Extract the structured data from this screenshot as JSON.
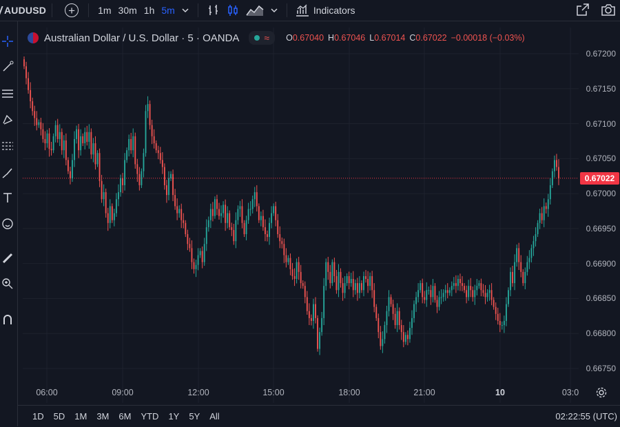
{
  "toolbar": {
    "symbol": "AUDUSD",
    "intervals": [
      "1m",
      "30m",
      "1h",
      "5m"
    ],
    "active_interval": "5m",
    "indicators_label": "Indicators"
  },
  "legend": {
    "title": "Australian Dollar / U.S. Dollar · 5 · OANDA",
    "o_key": "O",
    "o_val": "0.67040",
    "h_key": "H",
    "h_val": "0.67046",
    "l_key": "L",
    "l_val": "0.67014",
    "c_key": "C",
    "c_val": "0.67022",
    "change": "−0.00018 (−0.03%)"
  },
  "price_axis": {
    "labels": [
      "0.67200",
      "0.67150",
      "0.67100",
      "0.67050",
      "0.67000",
      "0.66950",
      "0.66900",
      "0.66850",
      "0.66800",
      "0.66750"
    ],
    "current_price": "0.67022"
  },
  "time_axis": {
    "labels": [
      "06:00",
      "09:00",
      "12:00",
      "15:00",
      "18:00",
      "21:00",
      "10",
      "03:0"
    ]
  },
  "bottom_bar": {
    "ranges": [
      "1D",
      "5D",
      "1M",
      "3M",
      "6M",
      "YTD",
      "1Y",
      "5Y",
      "All"
    ],
    "clock": "02:22:55 (UTC)"
  },
  "colors": {
    "background": "#131722",
    "up": "#26a69a",
    "down": "#ef5350",
    "accent": "#2962ff",
    "price_tag": "#f23645"
  },
  "chart_data": {
    "type": "candlestick",
    "ylim": [
      0.6675,
      0.6722
    ],
    "closes": [
      0.67182,
      0.67165,
      0.67148,
      0.67132,
      0.67118,
      0.67108,
      0.67098,
      0.67102,
      0.67092,
      0.67078,
      0.67072,
      0.67086,
      0.67064,
      0.67062,
      0.67082,
      0.67098,
      0.67078,
      0.67088,
      0.67062,
      0.67076,
      0.67048,
      0.67032,
      0.67022,
      0.67048,
      0.67078,
      0.67092,
      0.67062,
      0.67082,
      0.67072,
      0.67088,
      0.67074,
      0.67088,
      0.67056,
      0.67072,
      0.67042,
      0.67058,
      0.67018,
      0.66992,
      0.67002,
      0.66972,
      0.66958,
      0.66982,
      0.66962,
      0.66972,
      0.66992,
      0.67002,
      0.67022,
      0.67012,
      0.67048,
      0.67062,
      0.67078,
      0.67062,
      0.67082,
      0.67042,
      0.67028,
      0.67012,
      0.67032,
      0.67058,
      0.67118,
      0.67128,
      0.67098,
      0.67082,
      0.67072,
      0.67062,
      0.67058,
      0.67048,
      0.67038,
      0.67012,
      0.66998,
      0.67022,
      0.67028,
      0.66998,
      0.66982,
      0.66972,
      0.66978,
      0.66962,
      0.66958,
      0.66942,
      0.66928,
      0.66922,
      0.66902,
      0.66892,
      0.66898,
      0.66912,
      0.66918,
      0.66902,
      0.66928,
      0.66952,
      0.66962,
      0.66978,
      0.66968,
      0.66992,
      0.66978,
      0.66968,
      0.66972,
      0.66984,
      0.66958,
      0.66972,
      0.66952,
      0.66948,
      0.66932,
      0.66962,
      0.66978,
      0.66982,
      0.66958,
      0.66942,
      0.66962,
      0.66978,
      0.66978,
      0.66992,
      0.67002,
      0.66982,
      0.66962,
      0.66968,
      0.66952,
      0.66942,
      0.66938,
      0.66958,
      0.66972,
      0.66982,
      0.66962,
      0.66942,
      0.66932,
      0.66928,
      0.66912,
      0.66902,
      0.66908,
      0.66892,
      0.66882,
      0.66878,
      0.66902,
      0.66888,
      0.66872,
      0.66868,
      0.66852,
      0.66832,
      0.66822,
      0.66818,
      0.66842,
      0.66822,
      0.66778,
      0.66802,
      0.66822,
      0.66868,
      0.66902,
      0.66888,
      0.66872,
      0.66902,
      0.66882,
      0.66862,
      0.66888,
      0.66872,
      0.66858,
      0.66872,
      0.66882,
      0.66872,
      0.66878,
      0.66862,
      0.66872,
      0.66858,
      0.66872,
      0.66862,
      0.66882,
      0.66878,
      0.66868,
      0.66882,
      0.66862,
      0.66838,
      0.66822,
      0.66802,
      0.66782,
      0.66792,
      0.66812,
      0.66832,
      0.66852,
      0.66842,
      0.66828,
      0.66812,
      0.66832,
      0.66812,
      0.66802,
      0.66788,
      0.66798,
      0.66792,
      0.66808,
      0.66822,
      0.66842,
      0.66852,
      0.66862,
      0.66872,
      0.66852,
      0.66848,
      0.66862,
      0.66862,
      0.66852,
      0.66868,
      0.66848,
      0.66838,
      0.66852,
      0.66852,
      0.66858,
      0.66862,
      0.66858,
      0.66862,
      0.66868,
      0.66872,
      0.66868,
      0.66878,
      0.66872,
      0.66868,
      0.66862,
      0.66852,
      0.66868,
      0.66862,
      0.66852,
      0.66862,
      0.66868,
      0.66872,
      0.66862,
      0.66858,
      0.66852,
      0.66858,
      0.66862,
      0.66848,
      0.66838,
      0.66828,
      0.66818,
      0.66812,
      0.66812,
      0.66818,
      0.66842,
      0.66862,
      0.66888,
      0.66872,
      0.66902,
      0.66922,
      0.66902,
      0.66888,
      0.66872,
      0.66888,
      0.66902,
      0.66908,
      0.66922,
      0.66932,
      0.66942,
      0.66958,
      0.66972,
      0.66962,
      0.66982,
      0.66978,
      0.66992,
      0.67012,
      0.67032,
      0.67048,
      0.67038,
      0.67022
    ]
  }
}
